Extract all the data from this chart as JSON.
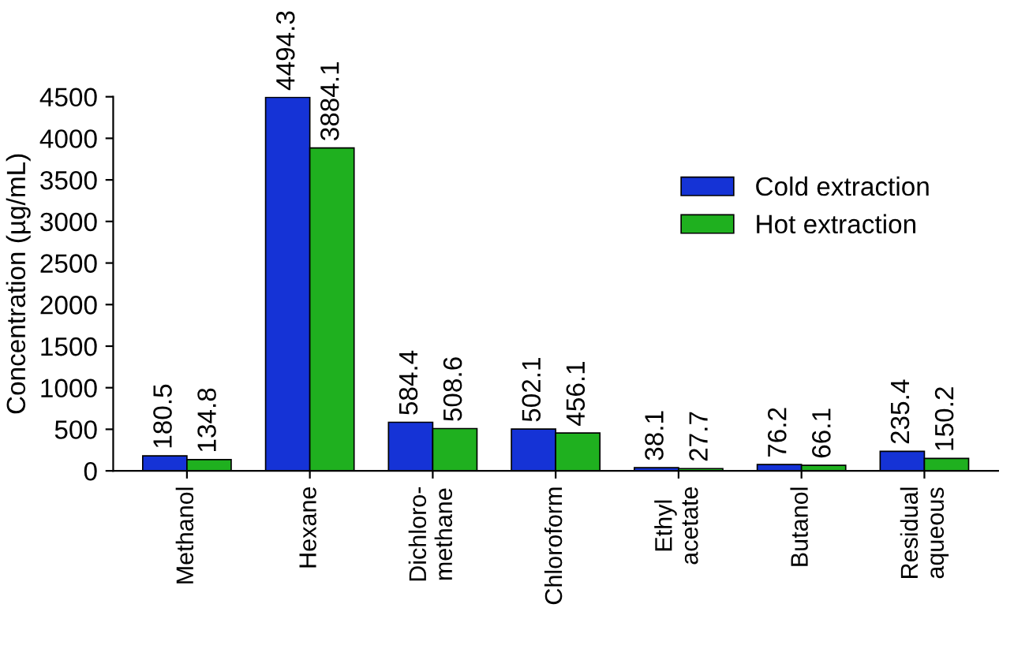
{
  "chart_data": {
    "type": "bar",
    "ylabel": "Concentration (µg/mL)",
    "categories": [
      "Methanol",
      "Hexane",
      "Dichloro-\nmethane",
      "Chloroform",
      "Ethyl\nacetate",
      "Butanol",
      "Residual\naqueous"
    ],
    "series": [
      {
        "name": "Cold extraction",
        "color": "#1533d6",
        "values": [
          180.5,
          4494.3,
          584.4,
          502.1,
          38.1,
          76.2,
          235.4
        ]
      },
      {
        "name": "Hot extraction",
        "color": "#1fb01f",
        "values": [
          134.8,
          3884.1,
          508.6,
          456.1,
          27.7,
          66.1,
          150.2
        ]
      }
    ],
    "ylim": [
      0,
      4500
    ],
    "yticks": [
      0,
      500,
      1000,
      1500,
      2000,
      2500,
      3000,
      3500,
      4000,
      4500
    ],
    "data_labels": true,
    "legend": "top right",
    "grid": false
  }
}
